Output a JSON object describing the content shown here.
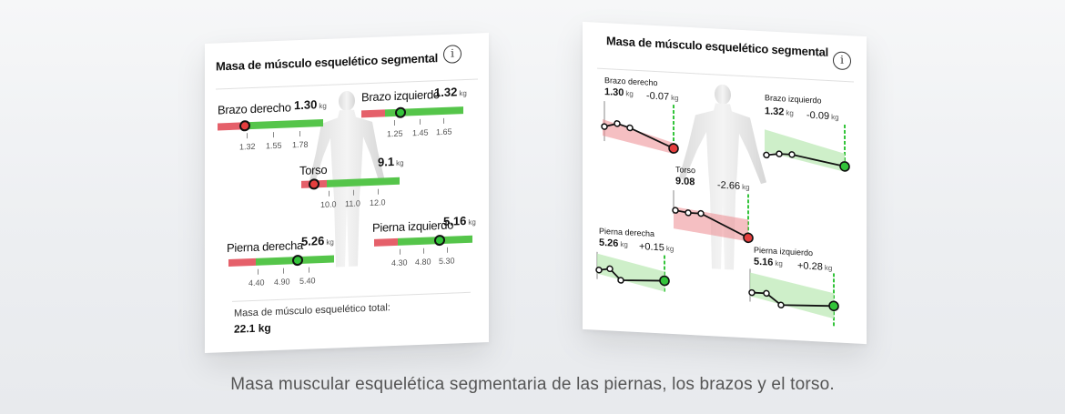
{
  "left_card": {
    "title": "Masa de músculo esquelético segmental",
    "info_icon": "i",
    "segments": [
      {
        "name": "Brazo derecho",
        "value": "1.30",
        "unit": "kg",
        "ticks": [
          "1.32",
          "1.55",
          "1.78"
        ],
        "status": "red"
      },
      {
        "name": "Brazo izquierdo",
        "value": "1.32",
        "unit": "kg",
        "ticks": [
          "1.25",
          "1.45",
          "1.65"
        ],
        "status": "green"
      },
      {
        "name": "Torso",
        "value": "9.1",
        "unit": "kg",
        "ticks": [
          "10.0",
          "11.0",
          "12.0"
        ],
        "status": "red"
      },
      {
        "name": "Pierna derecha",
        "value": "5.26",
        "unit": "kg",
        "ticks": [
          "4.40",
          "4.90",
          "5.40"
        ],
        "status": "green"
      },
      {
        "name": "Pierna izquierdo",
        "value": "5.16",
        "unit": "kg",
        "ticks": [
          "4.30",
          "4.80",
          "5.30"
        ],
        "status": "green"
      }
    ],
    "total_label": "Masa de músculo esquelético total:",
    "total_value": "22.1 kg"
  },
  "right_card": {
    "title": "Masa de músculo esquelético segmental",
    "info_icon": "i",
    "segments": [
      {
        "name": "Brazo derecho",
        "value": "1.30",
        "unit": "kg",
        "delta": "-0.07",
        "delta_unit": "kg",
        "status": "red"
      },
      {
        "name": "Brazo izquierdo",
        "value": "1.32",
        "unit": "kg",
        "delta": "-0.09",
        "delta_unit": "kg",
        "status": "green"
      },
      {
        "name": "Torso",
        "value": "9.08",
        "unit": "kg",
        "delta": "-2.66",
        "delta_unit": "kg",
        "status": "red"
      },
      {
        "name": "Pierna derecha",
        "value": "5.26",
        "unit": "kg",
        "delta": "+0.15",
        "delta_unit": "kg",
        "status": "green"
      },
      {
        "name": "Pierna izquierdo",
        "value": "5.16",
        "unit": "kg",
        "delta": "+0.28",
        "delta_unit": "kg",
        "status": "green"
      }
    ]
  },
  "caption": "Masa muscular esquelética segmentaria de las piernas, los brazos y el torso.",
  "colors": {
    "red": "#e5606a",
    "green": "#55c54a",
    "marker_red": "#e53e3e",
    "marker_green": "#33c43a"
  },
  "icons": [
    "info-icon",
    "body-figure-icon"
  ]
}
